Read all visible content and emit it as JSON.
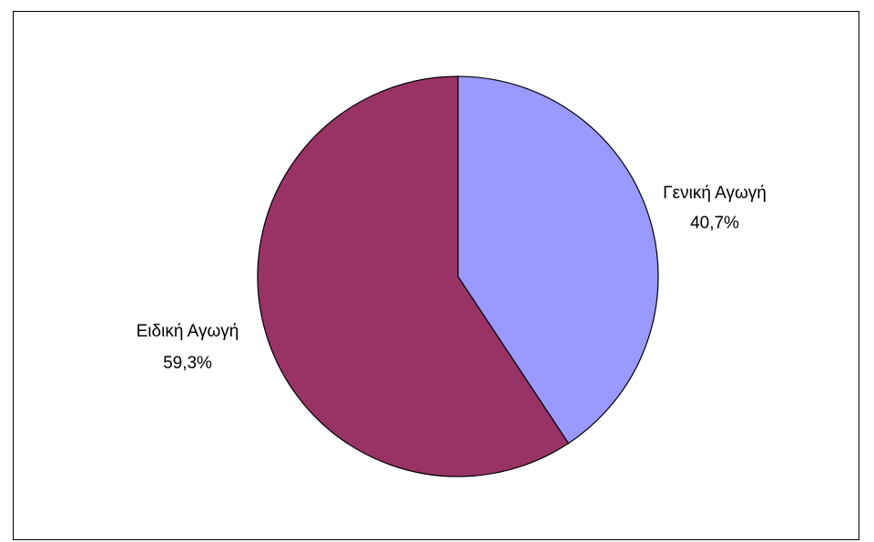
{
  "chart_data": {
    "type": "pie",
    "title": "",
    "categories": [
      "Γενική Αγωγή",
      "Ειδική Αγωγή"
    ],
    "values": [
      40.7,
      59.3
    ],
    "value_labels": [
      "40,7%",
      "59,3%"
    ],
    "colors": [
      "#9999ff",
      "#993366"
    ],
    "start_angle": "top",
    "direction": "clockwise",
    "legend": "none"
  },
  "labels": {
    "slice0_name": "Γενική Αγωγή",
    "slice0_value": "40,7%",
    "slice1_name": "Ειδική Αγωγή",
    "slice1_value": "59,3%"
  }
}
